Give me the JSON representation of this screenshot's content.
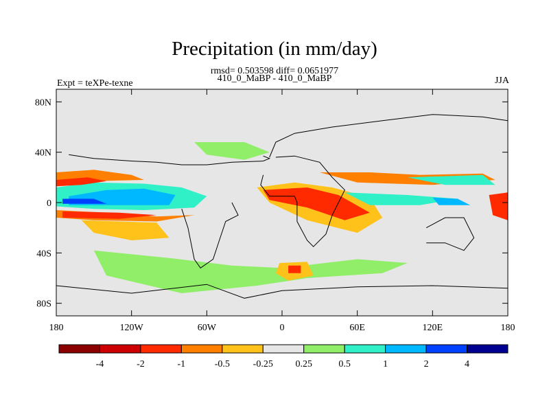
{
  "chart_data": {
    "type": "heatmap",
    "title": "Precipitation (in mm/day)",
    "stats_text": "rmsd= 0.503598 diff= 0.0651977",
    "subtitle": "410_0_MaBP - 410_0_MaBP",
    "left_label": "Expt = teXPe-texne",
    "right_label": "JJA",
    "xaxis": {
      "range": [
        -180,
        180
      ],
      "ticks": [
        -180,
        -120,
        -60,
        0,
        60,
        120,
        180
      ],
      "tick_labels": [
        "180",
        "120W",
        "60W",
        "0",
        "60E",
        "120E",
        "180"
      ]
    },
    "yaxis": {
      "range": [
        -90,
        90
      ],
      "ticks": [
        80,
        40,
        0,
        -40,
        -80
      ],
      "tick_labels": [
        "80N",
        "40N",
        "0",
        "40S",
        "80S"
      ]
    },
    "colorbar": {
      "levels": [
        "-4",
        "-2",
        "-1",
        "-0.5",
        "-0.25",
        "0.25",
        "0.5",
        "1",
        "2",
        "4"
      ],
      "colors": [
        "#8b0000",
        "#cc0000",
        "#ff2a00",
        "#ff8000",
        "#ffc21a",
        "#e6e6e6",
        "#90ee68",
        "#30f0c8",
        "#00b8ff",
        "#0040ff",
        "#000090"
      ]
    },
    "background_color": "#e6e6e6",
    "regions": [
      {
        "name": "central-pacific-positive",
        "color": "#30f0c8",
        "points": [
          [
            -180,
            12
          ],
          [
            -150,
            16
          ],
          [
            -110,
            15
          ],
          [
            -80,
            12
          ],
          [
            -60,
            5
          ],
          [
            -70,
            -4
          ],
          [
            -110,
            -6
          ],
          [
            -150,
            -5
          ],
          [
            -180,
            -3
          ]
        ]
      },
      {
        "name": "central-pacific-positive-strong",
        "color": "#00b8ff",
        "points": [
          [
            -170,
            5
          ],
          [
            -140,
            10
          ],
          [
            -110,
            11
          ],
          [
            -85,
            6
          ],
          [
            -90,
            -2
          ],
          [
            -130,
            -2
          ],
          [
            -170,
            -2
          ]
        ]
      },
      {
        "name": "central-pacific-peak",
        "color": "#0040ff",
        "points": [
          [
            -175,
            3
          ],
          [
            -150,
            3
          ],
          [
            -140,
            -1
          ],
          [
            -175,
            -1
          ]
        ]
      },
      {
        "name": "north-pacific-negative",
        "color": "#ff8000",
        "points": [
          [
            -180,
            24
          ],
          [
            -150,
            26
          ],
          [
            -120,
            22
          ],
          [
            -110,
            18
          ],
          [
            -150,
            17
          ],
          [
            -180,
            15
          ]
        ]
      },
      {
        "name": "north-pacific-strong-negative",
        "color": "#ff2a00",
        "points": [
          [
            -180,
            18
          ],
          [
            -155,
            20
          ],
          [
            -140,
            17
          ],
          [
            -160,
            14
          ],
          [
            -180,
            13
          ]
        ]
      },
      {
        "name": "south-pacific-negative",
        "color": "#ff8000",
        "points": [
          [
            -180,
            -6
          ],
          [
            -140,
            -8
          ],
          [
            -100,
            -11
          ],
          [
            -70,
            -10
          ],
          [
            -100,
            -15
          ],
          [
            -150,
            -14
          ],
          [
            -180,
            -12
          ]
        ]
      },
      {
        "name": "south-pacific-strong-negative",
        "color": "#ff2a00",
        "points": [
          [
            -175,
            -7
          ],
          [
            -130,
            -8
          ],
          [
            -100,
            -10
          ],
          [
            -130,
            -13
          ],
          [
            -175,
            -12
          ]
        ]
      },
      {
        "name": "south-pacific-convergence-negative",
        "color": "#ffc21a",
        "points": [
          [
            -160,
            -14
          ],
          [
            -100,
            -16
          ],
          [
            -90,
            -28
          ],
          [
            -120,
            -30
          ],
          [
            -150,
            -24
          ]
        ]
      },
      {
        "name": "africa-asia-negative",
        "color": "#ffc21a",
        "points": [
          [
            -20,
            12
          ],
          [
            10,
            16
          ],
          [
            40,
            12
          ],
          [
            70,
            4
          ],
          [
            80,
            -12
          ],
          [
            60,
            -24
          ],
          [
            20,
            -14
          ],
          [
            -10,
            0
          ]
        ]
      },
      {
        "name": "africa-asia-strong-negative",
        "color": "#ff2a00",
        "points": [
          [
            -15,
            10
          ],
          [
            20,
            12
          ],
          [
            45,
            6
          ],
          [
            70,
            -8
          ],
          [
            50,
            -14
          ],
          [
            20,
            -4
          ],
          [
            -10,
            2
          ]
        ]
      },
      {
        "name": "indian-ocean-positive",
        "color": "#30f0c8",
        "points": [
          [
            50,
            8
          ],
          [
            100,
            6
          ],
          [
            140,
            3
          ],
          [
            110,
            -2
          ],
          [
            70,
            -2
          ]
        ]
      },
      {
        "name": "west-pacific-positive-strong",
        "color": "#00b8ff",
        "points": [
          [
            120,
            4
          ],
          [
            140,
            3
          ],
          [
            150,
            -2
          ],
          [
            125,
            -2
          ]
        ]
      },
      {
        "name": "north-indian-negative",
        "color": "#ff8000",
        "points": [
          [
            30,
            24
          ],
          [
            70,
            24
          ],
          [
            110,
            22
          ],
          [
            160,
            23
          ],
          [
            170,
            18
          ],
          [
            120,
            14
          ],
          [
            60,
            16
          ]
        ]
      },
      {
        "name": "east-edge-negative",
        "color": "#ff2a00",
        "points": [
          [
            165,
            6
          ],
          [
            180,
            8
          ],
          [
            180,
            -14
          ],
          [
            168,
            -10
          ]
        ]
      },
      {
        "name": "southern-ocean-positive",
        "color": "#90ee68",
        "points": [
          [
            -150,
            -38
          ],
          [
            -90,
            -44
          ],
          [
            -40,
            -50
          ],
          [
            0,
            -52
          ],
          [
            60,
            -45
          ],
          [
            100,
            -48
          ],
          [
            80,
            -56
          ],
          [
            20,
            -60
          ],
          [
            -20,
            -66
          ],
          [
            -80,
            -72
          ],
          [
            -140,
            -58
          ]
        ]
      },
      {
        "name": "south-africa-negative",
        "color": "#ffc21a",
        "points": [
          [
            -2,
            -48
          ],
          [
            20,
            -47
          ],
          [
            25,
            -58
          ],
          [
            5,
            -62
          ],
          [
            -5,
            -56
          ]
        ]
      },
      {
        "name": "south-africa-strong-negative",
        "color": "#ff2a00",
        "points": [
          [
            5,
            -50
          ],
          [
            15,
            -50
          ],
          [
            15,
            -56
          ],
          [
            5,
            -56
          ]
        ]
      },
      {
        "name": "north-atlantic-positive",
        "color": "#90ee68",
        "points": [
          [
            -70,
            48
          ],
          [
            -30,
            48
          ],
          [
            -10,
            40
          ],
          [
            -30,
            34
          ],
          [
            -60,
            38
          ]
        ]
      },
      {
        "name": "east-asia-positive",
        "color": "#30f0c8",
        "points": [
          [
            100,
            20
          ],
          [
            160,
            22
          ],
          [
            170,
            14
          ],
          [
            130,
            14
          ]
        ]
      }
    ],
    "coastlines": [
      {
        "name": "north-america-outline",
        "points": [
          [
            -15,
            37
          ],
          [
            -10,
            35
          ],
          [
            -15,
            33
          ],
          [
            -40,
            32
          ],
          [
            -60,
            30
          ],
          [
            -80,
            30
          ],
          [
            -100,
            32
          ],
          [
            -120,
            33
          ],
          [
            -150,
            35
          ],
          [
            -170,
            38
          ]
        ]
      },
      {
        "name": "south-america-outline",
        "points": [
          [
            -40,
            0
          ],
          [
            -35,
            -10
          ],
          [
            -45,
            -15
          ],
          [
            -50,
            -30
          ],
          [
            -55,
            -45
          ],
          [
            -65,
            -52
          ],
          [
            -70,
            -45
          ],
          [
            -75,
            -20
          ],
          [
            -80,
            -5
          ]
        ]
      },
      {
        "name": "africa-outline",
        "points": [
          [
            -15,
            22
          ],
          [
            -17,
            14
          ],
          [
            -10,
            5
          ],
          [
            0,
            5
          ],
          [
            10,
            5
          ],
          [
            12,
            0
          ],
          [
            12,
            -15
          ],
          [
            20,
            -30
          ],
          [
            25,
            -35
          ],
          [
            35,
            -25
          ],
          [
            40,
            -10
          ],
          [
            50,
            10
          ],
          [
            40,
            20
          ],
          [
            30,
            32
          ],
          [
            10,
            37
          ],
          [
            -5,
            36
          ]
        ]
      },
      {
        "name": "eurasia-outline",
        "points": [
          [
            -10,
            36
          ],
          [
            -5,
            48
          ],
          [
            10,
            55
          ],
          [
            40,
            60
          ],
          [
            80,
            65
          ],
          [
            120,
            70
          ],
          [
            160,
            68
          ],
          [
            180,
            65
          ]
        ]
      },
      {
        "name": "australia-outline",
        "points": [
          [
            115,
            -20
          ],
          [
            130,
            -12
          ],
          [
            145,
            -12
          ],
          [
            153,
            -28
          ],
          [
            145,
            -38
          ],
          [
            130,
            -32
          ],
          [
            115,
            -32
          ]
        ]
      },
      {
        "name": "antarctica-outline",
        "points": [
          [
            -180,
            -66
          ],
          [
            -120,
            -72
          ],
          [
            -60,
            -65
          ],
          [
            -30,
            -76
          ],
          [
            0,
            -70
          ],
          [
            60,
            -67
          ],
          [
            120,
            -66
          ],
          [
            180,
            -68
          ]
        ]
      }
    ]
  }
}
